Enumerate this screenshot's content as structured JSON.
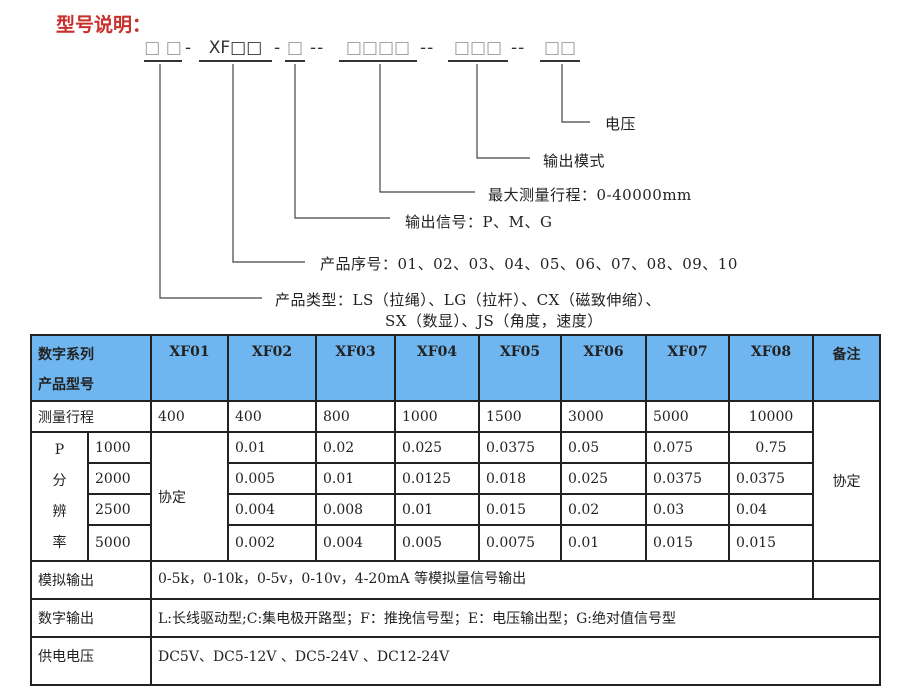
{
  "title": "型号说明：",
  "code": {
    "segments": [
      "□ □",
      "XF□□",
      "□",
      "□□□□",
      "□□□",
      "□□"
    ],
    "separators": [
      "-",
      "-",
      "--",
      "--",
      "--"
    ]
  },
  "labels": {
    "voltage": "电压",
    "output_mode": "输出模式",
    "max_range": "最大测量行程：0-40000mm",
    "output_signal": "输出信号：P、M、G",
    "serial": "产品序号：01、02、03、04、05、06、07、08、09、10",
    "type_line1": "产品类型：LS（拉绳）、LG（拉杆）、CX（磁致伸缩）、",
    "type_line2": "SX（数显）、JS（角度，速度）"
  },
  "table": {
    "header_line1": "数字系列",
    "header_line2": "产品型号",
    "models": [
      "XF01",
      "XF02",
      "XF03",
      "XF04",
      "XF05",
      "XF06",
      "XF07",
      "XF08"
    ],
    "remark_header": "备注",
    "range_label": "测量行程",
    "ranges": [
      "400",
      "400",
      "800",
      "1000",
      "1500",
      "3000",
      "5000",
      "10000"
    ],
    "resolution_label": [
      "P",
      "分",
      "辨",
      "率"
    ],
    "xf01_resolution": "协定",
    "remark_value": "协定",
    "resolution_rows": [
      {
        "p": "1000",
        "values": [
          "0.01",
          "0.02",
          "0.025",
          "0.0375",
          "0.05",
          "0.075",
          "0.75"
        ]
      },
      {
        "p": "2000",
        "values": [
          "0.005",
          "0.01",
          "0.0125",
          "0.018",
          "0.025",
          "0.0375",
          "0.0375"
        ]
      },
      {
        "p": "2500",
        "values": [
          "0.004",
          "0.008",
          "0.01",
          "0.015",
          "0.02",
          "0.03",
          "0.04"
        ]
      },
      {
        "p": "5000",
        "values": [
          "0.002",
          "0.004",
          "0.005",
          "0.0075",
          "0.01",
          "0.015",
          "0.015"
        ]
      }
    ],
    "analog_label": "模拟输出",
    "analog_value": "0-5k，0-10k，0-5v，0-10v，4-20mA 等模拟量信号输出",
    "digital_label": "数字输出",
    "digital_value": "L:长线驱动型;C:集电极开路型；F：推挽信号型；E：电压输出型；G:绝对值信号型",
    "power_label": "供电电压",
    "power_value": "DC5V、DC5-12V 、DC5-24V 、DC12-24V"
  },
  "colors": {
    "title": "#c9302c",
    "header_bg": "#6fb6f0"
  }
}
